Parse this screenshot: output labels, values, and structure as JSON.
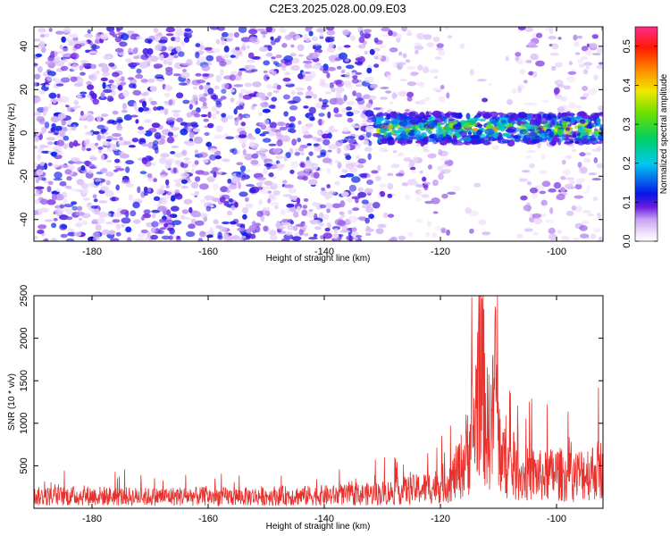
{
  "title": "C2E3.2025.028.00.09.E03",
  "chart_data": [
    {
      "type": "heatmap",
      "xlabel": "Height of straight line (km)",
      "ylabel": "Frequency (Hz)",
      "xlim": [
        -190,
        -92
      ],
      "ylim": [
        -50,
        49
      ],
      "x_ticks": [
        -180,
        -160,
        -140,
        -120,
        -100
      ],
      "y_ticks": [
        -40,
        -20,
        0,
        20,
        40
      ],
      "colorbar": {
        "label": "Normalized spectral amplitude",
        "range": [
          0.0,
          0.55
        ],
        "ticks": [
          0.0,
          0.1,
          0.2,
          0.3,
          0.4,
          0.5
        ],
        "ticks_text": [
          "0.0",
          "0.1",
          "0.2",
          "0.3",
          "0.4",
          "0.5"
        ]
      },
      "features": {
        "broadband_region_km": [
          -190,
          -131
        ],
        "broadband_level": 0.08,
        "narrowband_signal_km": [
          -131,
          -92
        ],
        "narrowband_center_hz": 2,
        "narrowband_halfwidth_hz": 7,
        "narrowband_peak_level": 0.45,
        "sparse_region_km": [
          -131,
          -92
        ],
        "sparse_gap_km": [
          -118,
          -107
        ]
      }
    },
    {
      "type": "line",
      "xlabel": "Height of straight line (km)",
      "ylabel": "SNR (10 * v/v)",
      "xlim": [
        -190,
        -92
      ],
      "ylim": [
        0,
        2500
      ],
      "x_ticks": [
        -180,
        -160,
        -140,
        -120,
        -100
      ],
      "y_ticks": [
        500,
        1000,
        1500,
        2000,
        2500
      ],
      "series": [
        {
          "color": "#e8302c",
          "x": [
            -190,
            -185,
            -180,
            -175,
            -170,
            -165,
            -160,
            -155,
            -150,
            -145,
            -140,
            -135,
            -130,
            -127,
            -124,
            -121,
            -118,
            -116,
            -115,
            -114,
            -113.2,
            -112,
            -111,
            -110.5,
            -110,
            -109,
            -108,
            -106,
            -104,
            -102,
            -100,
            -98,
            -96,
            -94,
            -92
          ],
          "y": [
            180,
            185,
            190,
            180,
            175,
            185,
            180,
            175,
            185,
            190,
            195,
            200,
            230,
            260,
            290,
            330,
            430,
            700,
            1000,
            1300,
            2450,
            1200,
            1300,
            2200,
            1000,
            700,
            600,
            500,
            520,
            480,
            540,
            460,
            520,
            560,
            600
          ]
        }
      ]
    }
  ]
}
